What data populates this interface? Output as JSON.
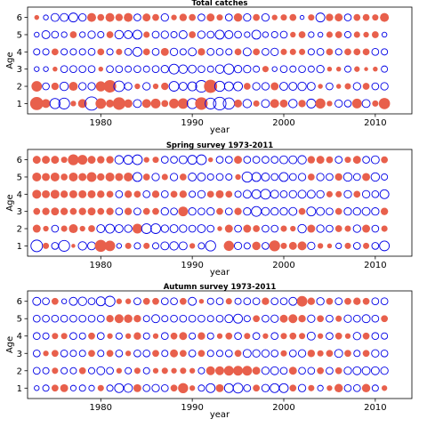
{
  "figure": {
    "panels": [
      {
        "title": "Total catches",
        "xlabel": "year",
        "ylabel": "Age"
      },
      {
        "title": "Spring survey 1973-2011",
        "xlabel": "year",
        "ylabel": "Age"
      },
      {
        "title": "Autumn survey 1973-2011",
        "xlabel": "year",
        "ylabel": "Age"
      }
    ]
  },
  "chart_data": [
    {
      "type": "scatter",
      "title": "Total catches",
      "xlabel": "year",
      "ylabel": "Age",
      "xlim": [
        1972,
        2014
      ],
      "ylim": [
        0.4,
        6.6
      ],
      "x_ticks": [
        1980,
        1990,
        2000,
        2010
      ],
      "y_ticks": [
        1,
        2,
        3,
        4,
        5,
        6
      ],
      "grid": false,
      "legend": "none",
      "encoding": "bubble size = residual magnitude; filled red = positive, open blue = negative",
      "colors": {
        "positive": "#e8604c",
        "negative": "#0000e6"
      },
      "years": [
        1973,
        2011
      ],
      "rows": [
        {
          "age": 1,
          "residuals": [
            2.2,
            1.0,
            -1.3,
            -1.5,
            0.4,
            1.0,
            -2.2,
            1.4,
            0.8,
            2.0,
            0.9,
            -0.8,
            1.0,
            1.2,
            0.6,
            1.2,
            1.4,
            -1.3,
            2.0,
            -1.5,
            -2.0,
            -1.6,
            0.8,
            -0.9,
            0.5,
            -0.8,
            1.0,
            0.8,
            -0.9,
            0.7,
            -1.0,
            1.3,
            0.4,
            -0.7,
            -0.6,
            1.2,
            -0.8,
            0.5,
            1.6,
            -0.8,
            0.0
          ]
        },
        {
          "age": 2,
          "residuals": [
            1.4,
            -0.6,
            0.7,
            -0.9,
            1.0,
            -0.7,
            -0.7,
            1.3,
            2.0,
            -1.4,
            -0.7,
            0.4,
            -0.7,
            0.4,
            0.7,
            -1.2,
            -0.8,
            -1.0,
            -1.7,
            2.2,
            -1.3,
            -1.0,
            -1.0,
            0.6,
            -0.7,
            -0.7,
            0.8,
            -0.8,
            -0.8,
            -0.9,
            -0.8,
            0.3,
            -0.6,
            0.3,
            0.5,
            -0.7,
            0.6,
            -0.6,
            -0.7,
            -0.8,
            -0.6
          ]
        },
        {
          "age": 3,
          "residuals": [
            -0.3,
            -0.3,
            0.3,
            -0.6,
            -0.6,
            -0.6,
            -0.6,
            0.3,
            -0.6,
            -0.6,
            -0.5,
            -0.6,
            -0.5,
            -0.6,
            -0.7,
            -1.2,
            -0.9,
            -0.8,
            -0.6,
            -0.5,
            -0.9,
            -1.3,
            -0.7,
            -0.7,
            -0.5,
            0.5,
            -0.3,
            -0.6,
            -0.5,
            -0.6,
            -0.5,
            -0.7,
            0.3,
            0.3,
            -0.5,
            0.4,
            0.2,
            0.3,
            -0.5,
            0.3,
            0.2
          ]
        },
        {
          "age": 4,
          "residuals": [
            -0.5,
            -0.5,
            0.6,
            -0.5,
            -0.5,
            -0.5,
            -0.6,
            0.6,
            -0.5,
            0.5,
            -0.6,
            -1.0,
            0.6,
            -0.6,
            0.8,
            -0.7,
            -0.5,
            -0.8,
            0.7,
            -0.6,
            -0.6,
            -0.5,
            0.6,
            -0.8,
            0.6,
            -0.6,
            -0.7,
            0.5,
            0.5,
            0.5,
            -0.5,
            -0.6,
            0.6,
            -0.5,
            0.6,
            0.6,
            0.6,
            -0.6,
            -0.5,
            -0.6,
            -0.5
          ]
        },
        {
          "age": 5,
          "residuals": [
            -0.3,
            -0.8,
            -0.6,
            -0.4,
            0.6,
            -0.4,
            -0.7,
            -0.5,
            0.6,
            -0.9,
            -0.8,
            -1.0,
            0.5,
            -0.6,
            -0.7,
            -0.5,
            -0.8,
            0.6,
            -0.7,
            -0.6,
            -1.0,
            -0.8,
            -0.6,
            -0.4,
            -1.0,
            -0.4,
            -0.5,
            -0.6,
            0.4,
            0.6,
            -0.4,
            -0.3,
            0.5,
            0.6,
            -0.5,
            0.5,
            0.4,
            0.6,
            -0.3,
            -0.3,
            -0.3
          ]
        },
        {
          "age": 6,
          "residuals": [
            0.3,
            -0.3,
            -0.8,
            -0.8,
            -1.0,
            -0.7,
            1.0,
            0.6,
            1.0,
            0.7,
            1.0,
            -0.6,
            0.8,
            0.6,
            -0.7,
            0.4,
            0.7,
            0.6,
            -0.6,
            0.8,
            0.5,
            -0.6,
            0.9,
            -0.7,
            0.6,
            -0.7,
            0.4,
            0.5,
            0.6,
            -0.2,
            0.5,
            -1.0,
            0.7,
            0.8,
            -0.6,
            0.6,
            0.6,
            0.5,
            1.0,
            -0.5,
            -0.3
          ]
        }
      ]
    },
    {
      "type": "scatter",
      "title": "Spring survey 1973-2011",
      "xlabel": "year",
      "ylabel": "Age",
      "xlim": [
        1972,
        2014
      ],
      "ylim": [
        0.4,
        6.6
      ],
      "x_ticks": [
        1980,
        1990,
        2000,
        2010
      ],
      "y_ticks": [
        1,
        2,
        3,
        4,
        5,
        6
      ],
      "grid": false,
      "legend": "none",
      "encoding": "bubble size = residual magnitude; filled red = positive, open blue = negative",
      "colors": {
        "positive": "#e8604c",
        "negative": "#0000e6"
      },
      "years": [
        1973,
        2011
      ],
      "rows": [
        {
          "age": 1,
          "residuals": [
            -1.7,
            0.5,
            -0.6,
            -1.5,
            0.2,
            -0.9,
            -0.8,
            1.8,
            1.4,
            -0.3,
            0.5,
            -0.5,
            0.5,
            -0.5,
            -0.8,
            -0.9,
            -0.8,
            0.4,
            -0.5,
            -1.3,
            0.0,
            1.3,
            -0.7,
            -0.5,
            0.9,
            -0.6,
            1.5,
            0.5,
            0.8,
            1.0,
            -0.7,
            0.4,
            0.3,
            -0.4,
            0.5,
            -0.6,
            0.5,
            -0.6,
            -1.2,
            -0.8,
            -0.6
          ]
        },
        {
          "age": 2,
          "residuals": [
            0.8,
            0.4,
            -0.6,
            0.5,
            1.0,
            0.4,
            0.6,
            -0.8,
            -1.0,
            -0.8,
            -0.7,
            1.2,
            -1.2,
            -1.2,
            -0.7,
            -0.8,
            -0.7,
            -0.6,
            -0.8,
            -0.6,
            0.3,
            0.8,
            -0.6,
            0.8,
            0.6,
            -0.6,
            -0.6,
            0.5,
            0.4,
            -0.9,
            0.8,
            -0.7,
            -0.6,
            0.6,
            0.5,
            -0.7,
            0.8,
            -0.6,
            0.5,
            0.8,
            -0.6
          ]
        },
        {
          "age": 3,
          "residuals": [
            0.6,
            0.7,
            0.8,
            0.7,
            0.6,
            0.7,
            0.8,
            0.6,
            0.7,
            -0.6,
            0.7,
            -0.6,
            0.6,
            0.6,
            -0.7,
            -0.6,
            1.2,
            -0.7,
            -0.6,
            -0.7,
            0.6,
            -0.6,
            0.7,
            -0.7,
            -1.2,
            -0.8,
            -0.7,
            -0.7,
            -0.8,
            0.6,
            -1.0,
            -0.8,
            -0.6,
            0.6,
            -0.7,
            -0.7,
            -0.8,
            -0.7,
            0.7,
            -0.7,
            -0.7
          ]
        },
        {
          "age": 4,
          "residuals": [
            1.0,
            0.8,
            1.0,
            0.7,
            0.8,
            0.8,
            0.8,
            0.7,
            0.6,
            -0.6,
            0.7,
            0.6,
            -0.6,
            0.7,
            -0.6,
            0.6,
            0.7,
            -0.5,
            -0.7,
            0.6,
            0.8,
            0.6,
            -0.5,
            -0.8,
            -1.0,
            -1.2,
            -0.8,
            -0.6,
            -0.7,
            -0.8,
            -0.8,
            -0.7,
            0.5,
            0.5,
            -0.7,
            0.6,
            -0.7,
            -0.6,
            -1.0,
            -0.7,
            -0.6
          ]
        },
        {
          "age": 5,
          "residuals": [
            1.0,
            0.8,
            1.0,
            0.6,
            1.0,
            0.8,
            1.2,
            0.7,
            1.0,
            0.8,
            1.0,
            -1.0,
            0.6,
            -0.7,
            0.5,
            -0.7,
            0.6,
            -0.8,
            -0.8,
            -0.5,
            -0.6,
            -0.5,
            0.4,
            -1.3,
            -1.0,
            -0.8,
            -0.6,
            -1.0,
            -0.6,
            -0.7,
            0.6,
            -0.7,
            -0.6,
            0.7,
            -0.9,
            -0.6,
            0.8,
            -0.9,
            -0.5,
            -0.8,
            -0.8
          ]
        },
        {
          "age": 6,
          "residuals": [
            0.8,
            0.8,
            0.8,
            0.5,
            1.5,
            1.2,
            0.8,
            0.7,
            0.7,
            -0.9,
            -1.0,
            -1.2,
            0.4,
            0.5,
            -0.6,
            -0.6,
            -0.8,
            -1.0,
            -1.2,
            0.3,
            -0.6,
            -0.6,
            0.8,
            -0.6,
            -0.6,
            -0.6,
            -0.6,
            -0.8,
            -0.8,
            -0.9,
            0.7,
            0.8,
            0.6,
            -0.6,
            0.5,
            0.8,
            -0.6,
            -0.8,
            0.6,
            -0.6,
            0.8
          ]
        }
      ]
    },
    {
      "type": "scatter",
      "title": "Autumn survey 1973-2011",
      "xlabel": "year",
      "ylabel": "Age",
      "xlim": [
        1972,
        2014
      ],
      "ylim": [
        0.4,
        6.6
      ],
      "x_ticks": [
        1980,
        1990,
        2000,
        2010
      ],
      "y_ticks": [
        1,
        2,
        3,
        4,
        5,
        6
      ],
      "grid": false,
      "legend": "none",
      "encoding": "bubble size = residual magnitude; filled red = positive, open blue = negative",
      "colors": {
        "positive": "#e8604c",
        "negative": "#0000e6"
      },
      "years": [
        1973,
        2011
      ],
      "rows": [
        {
          "age": 1,
          "residuals": [
            -0.3,
            -0.5,
            0.6,
            0.8,
            -0.4,
            -0.5,
            -0.4,
            0.5,
            -0.5,
            -1.0,
            -0.9,
            0.8,
            -0.6,
            -0.7,
            -0.6,
            0.6,
            1.3,
            0.4,
            -0.5,
            -1.0,
            0.8,
            -1.0,
            -1.2,
            -0.6,
            0.6,
            -0.7,
            -1.0,
            -1.0,
            0.6,
            -0.7,
            0.5,
            -0.4,
            0.4,
            0.9,
            -0.6,
            -0.6,
            0.9,
            -0.5,
            0.4,
            -0.5,
            0.4
          ]
        },
        {
          "age": 2,
          "residuals": [
            -0.6,
            -0.5,
            0.5,
            -0.5,
            -0.5,
            0.6,
            -0.5,
            -0.8,
            -0.6,
            0.4,
            -0.5,
            0.5,
            -0.5,
            0.4,
            0.5,
            0.4,
            0.5,
            0.4,
            -0.5,
            1.0,
            1.0,
            1.2,
            1.2,
            1.2,
            0.8,
            -0.7,
            -0.8,
            -0.6,
            0.8,
            -0.6,
            -0.6,
            0.6,
            -0.6,
            0.6,
            -0.7,
            -0.8,
            -0.8,
            -0.8,
            -0.7,
            -0.7,
            -1.0
          ]
        },
        {
          "age": 3,
          "residuals": [
            -0.6,
            0.4,
            0.6,
            -0.6,
            -0.5,
            -0.5,
            0.6,
            -0.5,
            0.6,
            -0.6,
            0.4,
            -0.6,
            -0.6,
            0.6,
            -0.5,
            0.8,
            0.6,
            -0.6,
            0.6,
            -0.5,
            -0.5,
            -0.6,
            0.6,
            -0.8,
            -0.7,
            -0.7,
            -0.6,
            0.5,
            -0.6,
            -0.7,
            0.7,
            0.5,
            0.6,
            -0.8,
            0.6,
            -0.5,
            0.6,
            -0.7,
            -0.6,
            -0.5,
            0.6
          ]
        },
        {
          "age": 4,
          "residuals": [
            -0.6,
            -0.5,
            0.5,
            0.5,
            -0.6,
            -0.5,
            0.6,
            -0.6,
            0.4,
            -0.5,
            0.4,
            0.7,
            -0.5,
            0.4,
            -0.6,
            0.6,
            0.8,
            -0.5,
            0.7,
            -0.5,
            0.4,
            0.6,
            -0.6,
            0.5,
            -0.6,
            0.4,
            -0.6,
            0.5,
            0.6,
            0.5,
            -0.8,
            0.4,
            -0.6,
            0.6,
            0.4,
            -0.7,
            0.6,
            -0.6,
            -0.5,
            -0.6,
            0.6
          ]
        },
        {
          "age": 5,
          "residuals": [
            -0.6,
            -0.6,
            -0.6,
            -0.6,
            -0.6,
            -0.6,
            -0.6,
            -0.6,
            0.7,
            1.0,
            0.9,
            0.7,
            -0.5,
            -0.8,
            -0.5,
            -0.6,
            -0.6,
            -0.6,
            -0.6,
            -0.5,
            -0.6,
            -0.8,
            -1.0,
            -0.5,
            0.6,
            -0.6,
            -0.7,
            0.8,
            1.0,
            0.7,
            -0.7,
            0.6,
            -0.6,
            0.5,
            -0.7,
            -0.6,
            -0.8,
            -0.6,
            0.6,
            0.8,
            1.0
          ]
        },
        {
          "age": 6,
          "residuals": [
            -0.8,
            -0.6,
            0.6,
            -0.3,
            -0.8,
            -0.9,
            -0.6,
            -1.0,
            -1.3,
            0.4,
            0.4,
            -0.6,
            0.6,
            0.6,
            -0.6,
            -0.6,
            0.6,
            -0.8,
            0.3,
            -0.5,
            -0.6,
            0.5,
            -0.5,
            -0.6,
            -0.6,
            0.7,
            -0.6,
            -0.6,
            -0.8,
            1.4,
            0.7,
            -0.7,
            0.6,
            -0.6,
            0.6,
            0.7,
            0.6,
            -0.6,
            -0.6,
            0.6,
            1.4
          ]
        }
      ]
    }
  ]
}
